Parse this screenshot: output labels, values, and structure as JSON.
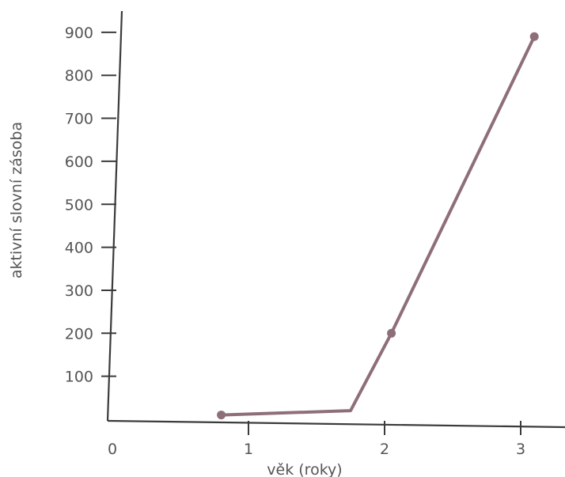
{
  "chart_data": {
    "type": "line",
    "title": "",
    "xlabel": "věk (roky)",
    "ylabel": "aktivní slovní zásoba",
    "xlim": [
      0,
      3.3
    ],
    "ylim": [
      0,
      950
    ],
    "x_ticks": [
      0,
      1,
      2,
      3
    ],
    "x_tick_labels": [
      "0",
      "1",
      "2",
      "3"
    ],
    "y_ticks": [
      100,
      200,
      300,
      400,
      500,
      600,
      700,
      800,
      900
    ],
    "y_tick_labels": [
      "100",
      "200",
      "300",
      "400",
      "500",
      "600",
      "700",
      "800",
      "900"
    ],
    "grid": false,
    "series": [
      {
        "color": "#8e6f78",
        "points": [
          {
            "x": 0.8,
            "y": 10
          },
          {
            "x": 1.75,
            "y": 20
          },
          {
            "x": 2.05,
            "y": 200
          },
          {
            "x": 3.1,
            "y": 890
          }
        ]
      }
    ]
  }
}
